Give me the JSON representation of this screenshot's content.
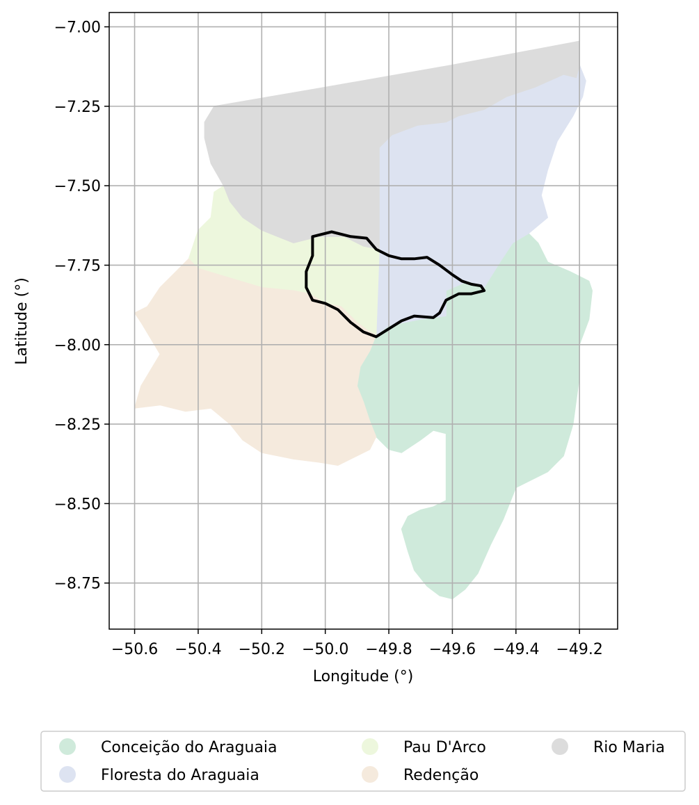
{
  "chart_data": {
    "type": "map",
    "xlabel": "Longitude (°)",
    "ylabel": "Latitude (°)",
    "xlim": [
      -50.68,
      -49.08
    ],
    "ylim": [
      -8.895,
      -6.955
    ],
    "grid": true,
    "x_ticks": [
      -50.6,
      -50.4,
      -50.2,
      -50.0,
      -49.8,
      -49.6,
      -49.4,
      -49.2
    ],
    "x_tick_labels": [
      "−50.6",
      "−50.4",
      "−50.2",
      "−50.0",
      "−49.8",
      "−49.6",
      "−49.4",
      "−49.2"
    ],
    "y_ticks": [
      -7.0,
      -7.25,
      -7.5,
      -7.75,
      -8.0,
      -8.25,
      -8.5,
      -8.75
    ],
    "y_tick_labels": [
      "−7.00",
      "−7.25",
      "−7.50",
      "−7.75",
      "−8.00",
      "−8.25",
      "−8.50",
      "−8.75"
    ],
    "legend_position": "bottom",
    "regions": [
      {
        "name": "Conceição do Araguaia",
        "color": "#cfeadb",
        "outline": [
          [
            -49.84,
            -7.97
          ],
          [
            -49.8,
            -7.94
          ],
          [
            -49.7,
            -7.92
          ],
          [
            -49.62,
            -7.91
          ],
          [
            -49.62,
            -7.83
          ],
          [
            -49.55,
            -7.8
          ],
          [
            -49.5,
            -7.82
          ],
          [
            -49.45,
            -7.74
          ],
          [
            -49.41,
            -7.68
          ],
          [
            -49.36,
            -7.65
          ],
          [
            -49.33,
            -7.68
          ],
          [
            -49.3,
            -7.74
          ],
          [
            -49.23,
            -7.77
          ],
          [
            -49.17,
            -7.8
          ],
          [
            -49.16,
            -7.83
          ],
          [
            -49.17,
            -7.92
          ],
          [
            -49.2,
            -8.0
          ],
          [
            -49.2,
            -8.1
          ],
          [
            -49.22,
            -8.25
          ],
          [
            -49.25,
            -8.35
          ],
          [
            -49.3,
            -8.4
          ],
          [
            -49.4,
            -8.45
          ],
          [
            -49.44,
            -8.55
          ],
          [
            -49.48,
            -8.63
          ],
          [
            -49.52,
            -8.72
          ],
          [
            -49.56,
            -8.77
          ],
          [
            -49.6,
            -8.8
          ],
          [
            -49.64,
            -8.79
          ],
          [
            -49.68,
            -8.76
          ],
          [
            -49.72,
            -8.71
          ],
          [
            -49.74,
            -8.65
          ],
          [
            -49.76,
            -8.58
          ],
          [
            -49.74,
            -8.54
          ],
          [
            -49.7,
            -8.52
          ],
          [
            -49.66,
            -8.51
          ],
          [
            -49.62,
            -8.49
          ],
          [
            -49.62,
            -8.28
          ],
          [
            -49.66,
            -8.27
          ],
          [
            -49.7,
            -8.3
          ],
          [
            -49.76,
            -8.34
          ],
          [
            -49.8,
            -8.33
          ],
          [
            -49.84,
            -8.29
          ],
          [
            -49.86,
            -8.24
          ],
          [
            -49.88,
            -8.18
          ],
          [
            -49.9,
            -8.13
          ],
          [
            -49.89,
            -8.07
          ],
          [
            -49.86,
            -8.02
          ]
        ]
      },
      {
        "name": "Floresta do Araguaia",
        "color": "#dde3f1",
        "outline": [
          [
            -49.84,
            -7.97
          ],
          [
            -49.83,
            -7.7
          ],
          [
            -49.83,
            -7.38
          ],
          [
            -49.79,
            -7.34
          ],
          [
            -49.71,
            -7.31
          ],
          [
            -49.62,
            -7.3
          ],
          [
            -49.58,
            -7.28
          ],
          [
            -49.5,
            -7.26
          ],
          [
            -49.43,
            -7.22
          ],
          [
            -49.34,
            -7.19
          ],
          [
            -49.25,
            -7.15
          ],
          [
            -49.21,
            -7.16
          ],
          [
            -49.2,
            -7.12
          ],
          [
            -49.18,
            -7.17
          ],
          [
            -49.19,
            -7.22
          ],
          [
            -49.22,
            -7.28
          ],
          [
            -49.27,
            -7.36
          ],
          [
            -49.3,
            -7.45
          ],
          [
            -49.32,
            -7.53
          ],
          [
            -49.3,
            -7.6
          ],
          [
            -49.36,
            -7.65
          ],
          [
            -49.41,
            -7.68
          ],
          [
            -49.45,
            -7.74
          ],
          [
            -49.5,
            -7.82
          ],
          [
            -49.55,
            -7.8
          ],
          [
            -49.62,
            -7.83
          ],
          [
            -49.62,
            -7.91
          ],
          [
            -49.7,
            -7.92
          ],
          [
            -49.8,
            -7.94
          ]
        ]
      },
      {
        "name": "Pau D'Arco",
        "color": "#edf7dd",
        "outline": [
          [
            -50.43,
            -7.73
          ],
          [
            -50.4,
            -7.64
          ],
          [
            -50.36,
            -7.6
          ],
          [
            -50.35,
            -7.52
          ],
          [
            -50.32,
            -7.5
          ],
          [
            -50.3,
            -7.55
          ],
          [
            -50.26,
            -7.6
          ],
          [
            -50.2,
            -7.64
          ],
          [
            -50.1,
            -7.68
          ],
          [
            -50.02,
            -7.66
          ],
          [
            -49.94,
            -7.66
          ],
          [
            -49.88,
            -7.69
          ],
          [
            -49.83,
            -7.7
          ],
          [
            -49.84,
            -7.97
          ],
          [
            -49.86,
            -7.96
          ],
          [
            -49.9,
            -7.93
          ],
          [
            -49.95,
            -7.88
          ],
          [
            -50.0,
            -7.87
          ],
          [
            -50.05,
            -7.84
          ],
          [
            -50.1,
            -7.83
          ],
          [
            -50.2,
            -7.82
          ],
          [
            -50.3,
            -7.79
          ],
          [
            -50.4,
            -7.76
          ]
        ]
      },
      {
        "name": "Redenção",
        "color": "#f5eadd",
        "outline": [
          [
            -50.43,
            -7.73
          ],
          [
            -50.4,
            -7.76
          ],
          [
            -50.3,
            -7.79
          ],
          [
            -50.2,
            -7.82
          ],
          [
            -50.1,
            -7.83
          ],
          [
            -50.05,
            -7.84
          ],
          [
            -50.0,
            -7.87
          ],
          [
            -49.95,
            -7.88
          ],
          [
            -49.9,
            -7.93
          ],
          [
            -49.86,
            -7.96
          ],
          [
            -49.84,
            -7.97
          ],
          [
            -49.86,
            -8.02
          ],
          [
            -49.89,
            -8.07
          ],
          [
            -49.9,
            -8.13
          ],
          [
            -49.88,
            -8.18
          ],
          [
            -49.86,
            -8.24
          ],
          [
            -49.84,
            -8.29
          ],
          [
            -49.86,
            -8.33
          ],
          [
            -49.9,
            -8.35
          ],
          [
            -49.96,
            -8.38
          ],
          [
            -50.02,
            -8.37
          ],
          [
            -50.1,
            -8.36
          ],
          [
            -50.2,
            -8.34
          ],
          [
            -50.26,
            -8.3
          ],
          [
            -50.3,
            -8.25
          ],
          [
            -50.36,
            -8.2
          ],
          [
            -50.44,
            -8.21
          ],
          [
            -50.52,
            -8.19
          ],
          [
            -50.6,
            -8.2
          ],
          [
            -50.58,
            -8.13
          ],
          [
            -50.55,
            -8.08
          ],
          [
            -50.52,
            -8.03
          ],
          [
            -50.55,
            -7.98
          ],
          [
            -50.58,
            -7.93
          ],
          [
            -50.6,
            -7.9
          ],
          [
            -50.56,
            -7.88
          ],
          [
            -50.52,
            -7.82
          ],
          [
            -50.48,
            -7.78
          ]
        ]
      },
      {
        "name": "Rio Maria",
        "color": "#dcdcdc",
        "outline": [
          [
            -50.35,
            -7.25
          ],
          [
            -50.0,
            -7.19
          ],
          [
            -49.6,
            -7.12
          ],
          [
            -49.2,
            -7.045
          ],
          [
            -49.2,
            -7.12
          ],
          [
            -49.21,
            -7.16
          ],
          [
            -49.25,
            -7.15
          ],
          [
            -49.34,
            -7.19
          ],
          [
            -49.43,
            -7.22
          ],
          [
            -49.5,
            -7.26
          ],
          [
            -49.58,
            -7.28
          ],
          [
            -49.62,
            -7.3
          ],
          [
            -49.71,
            -7.31
          ],
          [
            -49.79,
            -7.34
          ],
          [
            -49.83,
            -7.38
          ],
          [
            -49.83,
            -7.7
          ],
          [
            -49.88,
            -7.69
          ],
          [
            -49.94,
            -7.66
          ],
          [
            -50.02,
            -7.66
          ],
          [
            -50.1,
            -7.68
          ],
          [
            -50.2,
            -7.64
          ],
          [
            -50.26,
            -7.6
          ],
          [
            -50.3,
            -7.55
          ],
          [
            -50.32,
            -7.5
          ],
          [
            -50.36,
            -7.43
          ],
          [
            -50.38,
            -7.35
          ],
          [
            -50.38,
            -7.3
          ]
        ]
      }
    ],
    "highlight_outline": {
      "color": "#000000",
      "points": [
        [
          -50.04,
          -7.66
        ],
        [
          -49.98,
          -7.645
        ],
        [
          -49.92,
          -7.66
        ],
        [
          -49.87,
          -7.665
        ],
        [
          -49.84,
          -7.7
        ],
        [
          -49.8,
          -7.72
        ],
        [
          -49.76,
          -7.73
        ],
        [
          -49.72,
          -7.73
        ],
        [
          -49.68,
          -7.725
        ],
        [
          -49.64,
          -7.75
        ],
        [
          -49.6,
          -7.78
        ],
        [
          -49.57,
          -7.8
        ],
        [
          -49.54,
          -7.81
        ],
        [
          -49.51,
          -7.815
        ],
        [
          -49.5,
          -7.83
        ],
        [
          -49.54,
          -7.84
        ],
        [
          -49.58,
          -7.84
        ],
        [
          -49.62,
          -7.86
        ],
        [
          -49.64,
          -7.9
        ],
        [
          -49.66,
          -7.915
        ],
        [
          -49.72,
          -7.91
        ],
        [
          -49.76,
          -7.925
        ],
        [
          -49.8,
          -7.95
        ],
        [
          -49.84,
          -7.975
        ],
        [
          -49.88,
          -7.96
        ],
        [
          -49.92,
          -7.93
        ],
        [
          -49.96,
          -7.89
        ],
        [
          -50.0,
          -7.87
        ],
        [
          -50.04,
          -7.86
        ],
        [
          -50.06,
          -7.82
        ],
        [
          -50.06,
          -7.77
        ],
        [
          -50.04,
          -7.72
        ]
      ]
    }
  },
  "legend": [
    {
      "label": "Conceição do Araguaia",
      "color": "#cfeadb"
    },
    {
      "label": "Pau D'Arco",
      "color": "#edf7dd"
    },
    {
      "label": "Rio Maria",
      "color": "#dcdcdc"
    },
    {
      "label": "Floresta do Araguaia",
      "color": "#dde3f1"
    },
    {
      "label": "Redenção",
      "color": "#f5eadd"
    }
  ]
}
